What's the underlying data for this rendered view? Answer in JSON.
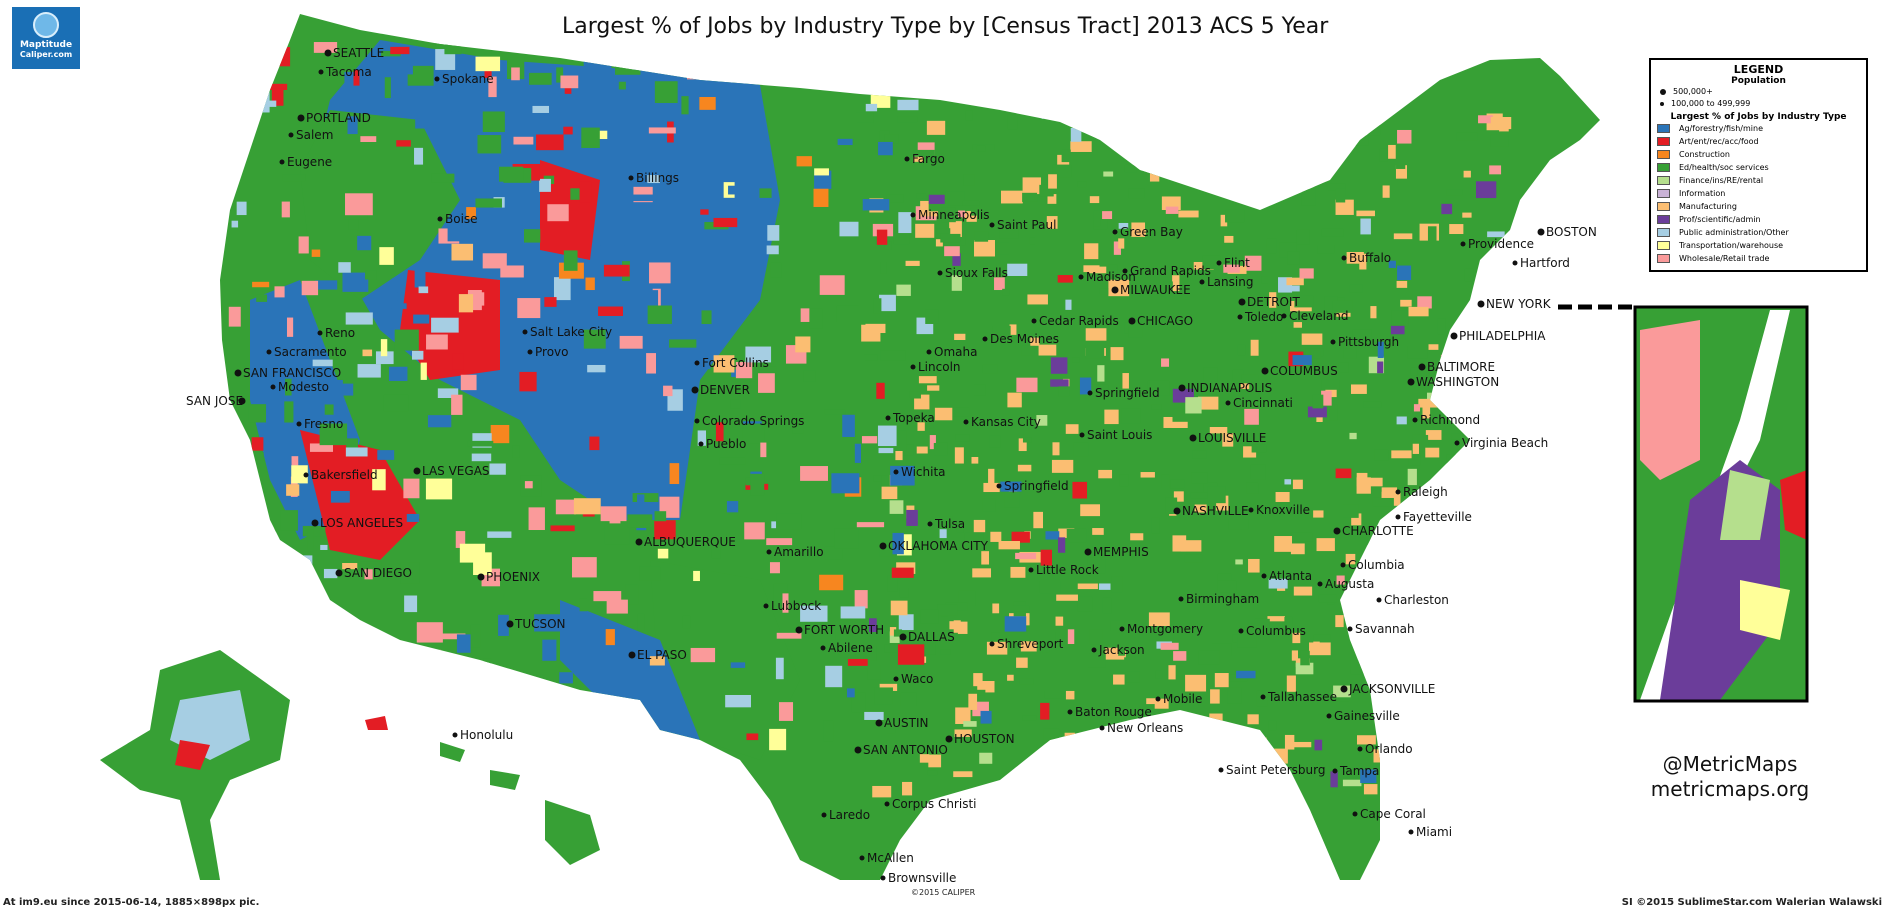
{
  "title": "Largest % of Jobs by Industry Type by [Census Tract] 2013 ACS 5 Year",
  "logo": {
    "line1": "Maptitude",
    "line2": "Caliper.com"
  },
  "legend": {
    "title": "LEGEND",
    "population_heading": "Population",
    "population": [
      {
        "label": "500,000+",
        "size": "large"
      },
      {
        "label": "100,000 to 499,999",
        "size": "small"
      }
    ],
    "industry_heading": "Largest % of Jobs by Industry Type",
    "industries": [
      {
        "label": "Ag/forestry/fish/mine",
        "color": "#2a74b8"
      },
      {
        "label": "Art/ent/rec/acc/food",
        "color": "#e31d24"
      },
      {
        "label": "Construction",
        "color": "#f7861f"
      },
      {
        "label": "Ed/health/soc services",
        "color": "#37a035"
      },
      {
        "label": "Finance/ins/RE/rental",
        "color": "#b5df8d"
      },
      {
        "label": "Information",
        "color": "#c9b2d6"
      },
      {
        "label": "Manufacturing",
        "color": "#fbbe72"
      },
      {
        "label": "Prof/scientific/admin",
        "color": "#6b3d9a"
      },
      {
        "label": "Public administration/Other",
        "color": "#a6cee3"
      },
      {
        "label": "Transportation/warehouse",
        "color": "#ffff99"
      },
      {
        "label": "Wholesale/Retail trade",
        "color": "#fa9a9a"
      }
    ]
  },
  "credit": {
    "handle": "@MetricMaps",
    "site": "metricmaps.org"
  },
  "footer": {
    "left": "At im9.eu since 2015-06-14, 1885×898px pic.",
    "right": "SI ©2015 SublimeStar.com Walerian Walawski",
    "copyright": "©2015 CALIPER"
  },
  "cities": [
    {
      "name": "SEATTLE",
      "big": true
    },
    {
      "name": "Tacoma",
      "big": false
    },
    {
      "name": "Spokane",
      "big": false
    },
    {
      "name": "PORTLAND",
      "big": true
    },
    {
      "name": "Salem",
      "big": false
    },
    {
      "name": "Eugene",
      "big": false
    },
    {
      "name": "Billings",
      "big": false
    },
    {
      "name": "Boise",
      "big": false
    },
    {
      "name": "Fargo",
      "big": false
    },
    {
      "name": "Minneapolis",
      "big": false
    },
    {
      "name": "Saint Paul",
      "big": false
    },
    {
      "name": "Green Bay",
      "big": false
    },
    {
      "name": "BOSTON",
      "big": true
    },
    {
      "name": "Providence",
      "big": false
    },
    {
      "name": "Hartford",
      "big": false
    },
    {
      "name": "Buffalo",
      "big": false
    },
    {
      "name": "Flint",
      "big": false
    },
    {
      "name": "Lansing",
      "big": false
    },
    {
      "name": "Grand Rapids",
      "big": false
    },
    {
      "name": "Madison",
      "big": false
    },
    {
      "name": "MILWAUKEE",
      "big": true
    },
    {
      "name": "DETROIT",
      "big": true
    },
    {
      "name": "Sioux Falls",
      "big": false
    },
    {
      "name": "NEW YORK",
      "big": true
    },
    {
      "name": "Reno",
      "big": false
    },
    {
      "name": "Salt Lake City",
      "big": false
    },
    {
      "name": "Provo",
      "big": false
    },
    {
      "name": "Sacramento",
      "big": false
    },
    {
      "name": "SAN FRANCISCO",
      "big": true
    },
    {
      "name": "Modesto",
      "big": false
    },
    {
      "name": "SAN JOSE",
      "big": true
    },
    {
      "name": "Fort Collins",
      "big": false
    },
    {
      "name": "DENVER",
      "big": true
    },
    {
      "name": "Colorado Springs",
      "big": false
    },
    {
      "name": "Pueblo",
      "big": false
    },
    {
      "name": "Fresno",
      "big": false
    },
    {
      "name": "Cedar Rapids",
      "big": false
    },
    {
      "name": "CHICAGO",
      "big": true
    },
    {
      "name": "Toledo",
      "big": false
    },
    {
      "name": "Cleveland",
      "big": false
    },
    {
      "name": "Omaha",
      "big": false
    },
    {
      "name": "Lincoln",
      "big": false
    },
    {
      "name": "Des Moines",
      "big": false
    },
    {
      "name": "Pittsburgh",
      "big": false
    },
    {
      "name": "PHILADELPHIA",
      "big": true
    },
    {
      "name": "BALTIMORE",
      "big": true
    },
    {
      "name": "WASHINGTON",
      "big": true
    },
    {
      "name": "COLUMBUS",
      "big": true
    },
    {
      "name": "INDIANAPOLIS",
      "big": true
    },
    {
      "name": "Cincinnati",
      "big": false
    },
    {
      "name": "Springfield",
      "big": false
    },
    {
      "name": "Topeka",
      "big": false
    },
    {
      "name": "Kansas City",
      "big": false
    },
    {
      "name": "Saint Louis",
      "big": false
    },
    {
      "name": "LOUISVILLE",
      "big": true
    },
    {
      "name": "Richmond",
      "big": false
    },
    {
      "name": "Virginia Beach",
      "big": false
    },
    {
      "name": "Bakersfield",
      "big": false
    },
    {
      "name": "LAS VEGAS",
      "big": true
    },
    {
      "name": "Wichita",
      "big": false
    },
    {
      "name": "Springfield",
      "big": false
    },
    {
      "name": "Raleigh",
      "big": false
    },
    {
      "name": "LOS ANGELES",
      "big": true
    },
    {
      "name": "Tulsa",
      "big": false
    },
    {
      "name": "NASHVILLE",
      "big": true
    },
    {
      "name": "Knoxville",
      "big": false
    },
    {
      "name": "CHARLOTTE",
      "big": true
    },
    {
      "name": "Fayetteville",
      "big": false
    },
    {
      "name": "ALBUQUERQUE",
      "big": true
    },
    {
      "name": "OKLAHOMA CITY",
      "big": true
    },
    {
      "name": "Amarillo",
      "big": false
    },
    {
      "name": "MEMPHIS",
      "big": true
    },
    {
      "name": "Columbia",
      "big": false
    },
    {
      "name": "SAN DIEGO",
      "big": true
    },
    {
      "name": "PHOENIX",
      "big": true
    },
    {
      "name": "Little Rock",
      "big": false
    },
    {
      "name": "Atlanta",
      "big": false
    },
    {
      "name": "Augusta",
      "big": false
    },
    {
      "name": "Birmingham",
      "big": false
    },
    {
      "name": "Charleston",
      "big": false
    },
    {
      "name": "Lubbock",
      "big": false
    },
    {
      "name": "TUCSON",
      "big": true
    },
    {
      "name": "FORT WORTH",
      "big": true
    },
    {
      "name": "DALLAS",
      "big": true
    },
    {
      "name": "Montgomery",
      "big": false
    },
    {
      "name": "Columbus",
      "big": false
    },
    {
      "name": "Savannah",
      "big": false
    },
    {
      "name": "Abilene",
      "big": false
    },
    {
      "name": "Shreveport",
      "big": false
    },
    {
      "name": "Jackson",
      "big": false
    },
    {
      "name": "EL PASO",
      "big": true
    },
    {
      "name": "Waco",
      "big": false
    },
    {
      "name": "JACKSONVILLE",
      "big": true
    },
    {
      "name": "Mobile",
      "big": false
    },
    {
      "name": "Tallahassee",
      "big": false
    },
    {
      "name": "Baton Rouge",
      "big": false
    },
    {
      "name": "Gainesville",
      "big": false
    },
    {
      "name": "AUSTIN",
      "big": true
    },
    {
      "name": "New Orleans",
      "big": false
    },
    {
      "name": "Honolulu",
      "big": false
    },
    {
      "name": "HOUSTON",
      "big": true
    },
    {
      "name": "SAN ANTONIO",
      "big": true
    },
    {
      "name": "Orlando",
      "big": false
    },
    {
      "name": "Saint Petersburg",
      "big": false
    },
    {
      "name": "Tampa",
      "big": false
    },
    {
      "name": "Corpus Christi",
      "big": false
    },
    {
      "name": "Laredo",
      "big": false
    },
    {
      "name": "Cape Coral",
      "big": false
    },
    {
      "name": "Miami",
      "big": false
    },
    {
      "name": "McAllen",
      "big": false
    },
    {
      "name": "Brownsville",
      "big": false
    }
  ]
}
